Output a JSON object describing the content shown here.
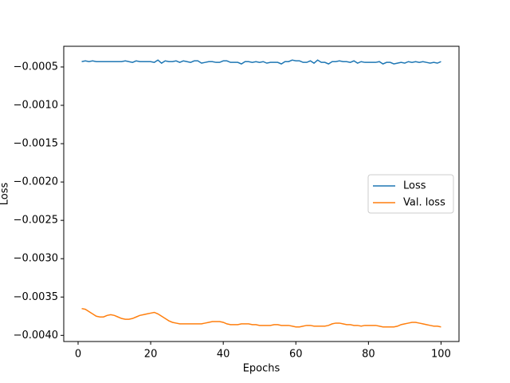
{
  "chart_data": {
    "type": "line",
    "xlabel": "Epochs",
    "ylabel": "Loss",
    "x": [
      1,
      2,
      3,
      4,
      5,
      6,
      7,
      8,
      9,
      10,
      11,
      12,
      13,
      14,
      15,
      16,
      17,
      18,
      19,
      20,
      21,
      22,
      23,
      24,
      25,
      26,
      27,
      28,
      29,
      30,
      31,
      32,
      33,
      34,
      35,
      36,
      37,
      38,
      39,
      40,
      41,
      42,
      43,
      44,
      45,
      46,
      47,
      48,
      49,
      50,
      51,
      52,
      53,
      54,
      55,
      56,
      57,
      58,
      59,
      60,
      61,
      62,
      63,
      64,
      65,
      66,
      67,
      68,
      69,
      70,
      71,
      72,
      73,
      74,
      75,
      76,
      77,
      78,
      79,
      80,
      81,
      82,
      83,
      84,
      85,
      86,
      87,
      88,
      89,
      90,
      91,
      92,
      93,
      94,
      95,
      96,
      97,
      98,
      99,
      100
    ],
    "series": [
      {
        "name": "Loss",
        "color": "#1f77b4",
        "values": [
          -0.00043,
          -0.00042,
          -0.00043,
          -0.00042,
          -0.00043,
          -0.00043,
          -0.00043,
          -0.00043,
          -0.00043,
          -0.00043,
          -0.00043,
          -0.00043,
          -0.00042,
          -0.00043,
          -0.00044,
          -0.00042,
          -0.00043,
          -0.00043,
          -0.00043,
          -0.00043,
          -0.00044,
          -0.00041,
          -0.00045,
          -0.00042,
          -0.00043,
          -0.00043,
          -0.00042,
          -0.00044,
          -0.00042,
          -0.00043,
          -0.00044,
          -0.00042,
          -0.00042,
          -0.00045,
          -0.00044,
          -0.00043,
          -0.00043,
          -0.00044,
          -0.00044,
          -0.00042,
          -0.00042,
          -0.00044,
          -0.00044,
          -0.00044,
          -0.00046,
          -0.00043,
          -0.00043,
          -0.00044,
          -0.00043,
          -0.00044,
          -0.00043,
          -0.00045,
          -0.00044,
          -0.00044,
          -0.00044,
          -0.00046,
          -0.00043,
          -0.00043,
          -0.00041,
          -0.00042,
          -0.00042,
          -0.00044,
          -0.00044,
          -0.00042,
          -0.00045,
          -0.00041,
          -0.00044,
          -0.00044,
          -0.00046,
          -0.00043,
          -0.00043,
          -0.00042,
          -0.00043,
          -0.00043,
          -0.00044,
          -0.00042,
          -0.00045,
          -0.00043,
          -0.00044,
          -0.00044,
          -0.00044,
          -0.00044,
          -0.00043,
          -0.00046,
          -0.00044,
          -0.00044,
          -0.00046,
          -0.00045,
          -0.00044,
          -0.00045,
          -0.00043,
          -0.00044,
          -0.00043,
          -0.00044,
          -0.00043,
          -0.00044,
          -0.00045,
          -0.00044,
          -0.00045,
          -0.00043
        ]
      },
      {
        "name": "Val. loss",
        "color": "#ff7f0e",
        "values": [
          -0.00365,
          -0.00366,
          -0.00369,
          -0.00372,
          -0.00375,
          -0.00376,
          -0.00376,
          -0.00374,
          -0.00373,
          -0.00374,
          -0.00376,
          -0.00378,
          -0.00379,
          -0.00379,
          -0.00378,
          -0.00376,
          -0.00374,
          -0.00373,
          -0.00372,
          -0.00371,
          -0.0037,
          -0.00372,
          -0.00375,
          -0.00378,
          -0.00381,
          -0.00383,
          -0.00384,
          -0.00385,
          -0.00385,
          -0.00385,
          -0.00385,
          -0.00385,
          -0.00385,
          -0.00385,
          -0.00384,
          -0.00383,
          -0.00382,
          -0.00382,
          -0.00382,
          -0.00383,
          -0.00385,
          -0.00386,
          -0.00386,
          -0.00386,
          -0.00385,
          -0.00385,
          -0.00385,
          -0.00386,
          -0.00386,
          -0.00387,
          -0.00387,
          -0.00387,
          -0.00387,
          -0.00386,
          -0.00386,
          -0.00387,
          -0.00387,
          -0.00387,
          -0.00388,
          -0.00389,
          -0.00389,
          -0.00388,
          -0.00387,
          -0.00387,
          -0.00388,
          -0.00388,
          -0.00388,
          -0.00388,
          -0.00387,
          -0.00385,
          -0.00384,
          -0.00384,
          -0.00385,
          -0.00386,
          -0.00386,
          -0.00387,
          -0.00387,
          -0.00388,
          -0.00387,
          -0.00387,
          -0.00387,
          -0.00387,
          -0.00388,
          -0.00389,
          -0.00389,
          -0.00389,
          -0.00389,
          -0.00388,
          -0.00386,
          -0.00385,
          -0.00384,
          -0.00383,
          -0.00383,
          -0.00384,
          -0.00385,
          -0.00386,
          -0.00387,
          -0.00388,
          -0.00388,
          -0.00389
        ]
      }
    ],
    "xlim": [
      -3.95,
      104.95
    ],
    "xticks": [
      0,
      20,
      40,
      60,
      80,
      100
    ],
    "ylim": [
      -0.00408,
      -0.00023
    ],
    "yticks": [
      {
        "value": -0.004,
        "label": "−0.0040"
      },
      {
        "value": -0.0035,
        "label": "−0.0035"
      },
      {
        "value": -0.003,
        "label": "−0.0030"
      },
      {
        "value": -0.0025,
        "label": "−0.0025"
      },
      {
        "value": -0.002,
        "label": "−0.0020"
      },
      {
        "value": -0.0015,
        "label": "−0.0015"
      },
      {
        "value": -0.001,
        "label": "−0.0010"
      },
      {
        "value": -0.0005,
        "label": "−0.0005"
      }
    ],
    "legend": "center right"
  }
}
